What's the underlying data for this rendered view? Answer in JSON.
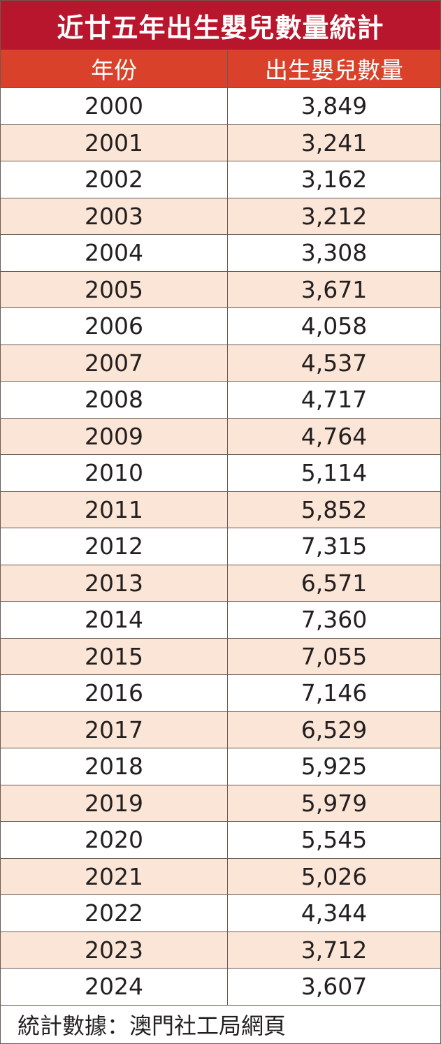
{
  "title": "近廿五年出生嬰兒數量統計",
  "colors": {
    "title_bg": "#b8162c",
    "header_bg": "#d9412a",
    "alt_row_bg": "#fbe5d6",
    "grid": "#6b5a52"
  },
  "chart_data": {
    "type": "table",
    "title": "近廿五年出生嬰兒數量統計",
    "columns": [
      "年份",
      "出生嬰兒數量"
    ],
    "rows": [
      [
        "2000",
        "3,849"
      ],
      [
        "2001",
        "3,241"
      ],
      [
        "2002",
        "3,162"
      ],
      [
        "2003",
        "3,212"
      ],
      [
        "2004",
        "3,308"
      ],
      [
        "2005",
        "3,671"
      ],
      [
        "2006",
        "4,058"
      ],
      [
        "2007",
        "4,537"
      ],
      [
        "2008",
        "4,717"
      ],
      [
        "2009",
        "4,764"
      ],
      [
        "2010",
        "5,114"
      ],
      [
        "2011",
        "5,852"
      ],
      [
        "2012",
        "7,315"
      ],
      [
        "2013",
        "6,571"
      ],
      [
        "2014",
        "7,360"
      ],
      [
        "2015",
        "7,055"
      ],
      [
        "2016",
        "7,146"
      ],
      [
        "2017",
        "6,529"
      ],
      [
        "2018",
        "5,925"
      ],
      [
        "2019",
        "5,979"
      ],
      [
        "2020",
        "5,545"
      ],
      [
        "2021",
        "5,026"
      ],
      [
        "2022",
        "4,344"
      ],
      [
        "2023",
        "3,712"
      ],
      [
        "2024",
        "3,607"
      ]
    ],
    "source": "統計數據：澳門社工局網頁"
  }
}
